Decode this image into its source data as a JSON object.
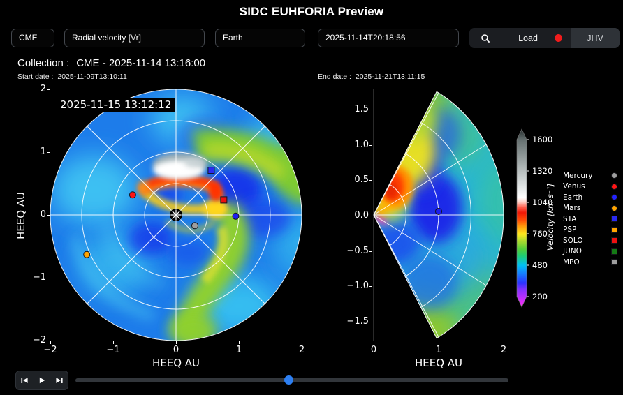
{
  "header": {
    "title": "SIDC EUHFORIA Preview"
  },
  "controls": {
    "model": "CME",
    "variable": "Radial velocity [Vr]",
    "observer": "Earth",
    "datetime": "2025-11-14T20:18:56",
    "load_label": "Load",
    "jhv_label": "JHV"
  },
  "collection": {
    "label": "Collection :",
    "value": "CME - 2025-11-14 13:16:00",
    "start_label": "Start  date :",
    "start_value": "2025-11-09T13:10:11",
    "end_label": "End  date :",
    "end_value": "2025-11-21T13:11:15"
  },
  "chart_data": [
    {
      "type": "heatmap",
      "projection": "polar-equatorial-slice",
      "quantity": "Radial velocity [Vr]",
      "title_overlay": "2025-11-15 13:12:12",
      "xlabel": "HEEQ AU",
      "ylabel": "HEEQ AU",
      "xticks": [
        "−2",
        "−1",
        "0",
        "1",
        "2"
      ],
      "yticks": [
        "2",
        "1",
        "0",
        "−1",
        "−2"
      ],
      "xlim": [
        -2,
        2
      ],
      "ylim": [
        -2,
        2
      ],
      "grid_circles_au": [
        0.5,
        1,
        1.5,
        2
      ],
      "grid_radial_lines_deg": [
        0,
        45,
        90,
        135,
        180,
        225,
        270,
        315
      ],
      "features": "white/gray CME ejecta with red-orange sheath north of Sun; yellow-green high-speed spiral stream sweeping to the right and down; azure ambient solar wind; Sun marked by black disc with white star at origin",
      "markers": [
        {
          "name": "Venus",
          "shape": "circle",
          "color": "#ff1515",
          "x": -0.69,
          "y": 0.32
        },
        {
          "name": "Mars",
          "shape": "circle",
          "color": "#ffa400",
          "x": -1.42,
          "y": -0.63
        },
        {
          "name": "Mercury",
          "shape": "circle",
          "color": "#9e9e9e",
          "x": 0.3,
          "y": -0.17
        },
        {
          "name": "Earth",
          "shape": "circle",
          "color": "#2020ee",
          "x": 0.95,
          "y": -0.02
        },
        {
          "name": "STA",
          "shape": "square",
          "color": "#2a2af0",
          "x": 0.56,
          "y": 0.71
        },
        {
          "name": "SOLO",
          "shape": "square",
          "color": "#ee1010",
          "x": 0.76,
          "y": 0.24
        }
      ]
    },
    {
      "type": "heatmap",
      "projection": "meridional-wedge",
      "quantity": "Radial velocity [Vr]",
      "xlabel": "HEEQ AU",
      "xticks": [
        "0",
        "1",
        "2"
      ],
      "yticks": [
        "1.5",
        "1.0",
        "0.5",
        "0.0",
        "−0.5",
        "−1.0",
        "−1.5"
      ],
      "xlim": [
        0,
        2
      ],
      "ylim": [
        -1.75,
        1.75
      ],
      "wedge_half_angle_deg": 61,
      "grid_arcs_au": [
        0.5,
        1,
        1.5,
        2
      ],
      "grid_radial_lines_deg": [
        -60,
        -30,
        0,
        30,
        60
      ],
      "features": "red/orange CME core near 0.3 AU above the equator with yellow sheath; deep blue slow wind around 1 AU; cyan to green outer wind; magenta sliver at origin",
      "markers": [
        {
          "name": "Earth",
          "shape": "circle",
          "color": "#1c1cee",
          "x": 1.0,
          "y": 0.05
        }
      ]
    }
  ],
  "colorbar": {
    "label": "Velocity [km·s⁻¹]",
    "ticks": [
      "1600",
      "1320",
      "1040",
      "760",
      "480",
      "200"
    ],
    "vmin": 200,
    "vmax": 1600,
    "colormap_description": "magenta → blue → cyan → green → yellow → orange → red → white → gray (extended arrows both ends)"
  },
  "legend": {
    "items": [
      {
        "label": "Mercury",
        "shape": "circle",
        "color": "#9e9e9e"
      },
      {
        "label": "Venus",
        "shape": "circle",
        "color": "#ff1515"
      },
      {
        "label": "Earth",
        "shape": "circle",
        "color": "#2222ff"
      },
      {
        "label": "Mars",
        "shape": "circle",
        "color": "#ffa400"
      },
      {
        "label": "STA",
        "shape": "square",
        "color": "#2a2af0"
      },
      {
        "label": "PSP",
        "shape": "square",
        "color": "#ffa400"
      },
      {
        "label": "SOLO",
        "shape": "square",
        "color": "#ee1010"
      },
      {
        "label": "JUNO",
        "shape": "square",
        "color": "#157a15"
      },
      {
        "label": "MPO",
        "shape": "square",
        "color": "#9e9e9e"
      }
    ]
  },
  "player": {
    "buttons": [
      "skip-previous",
      "play",
      "skip-next"
    ]
  },
  "slider": {
    "fraction": 0.492
  }
}
